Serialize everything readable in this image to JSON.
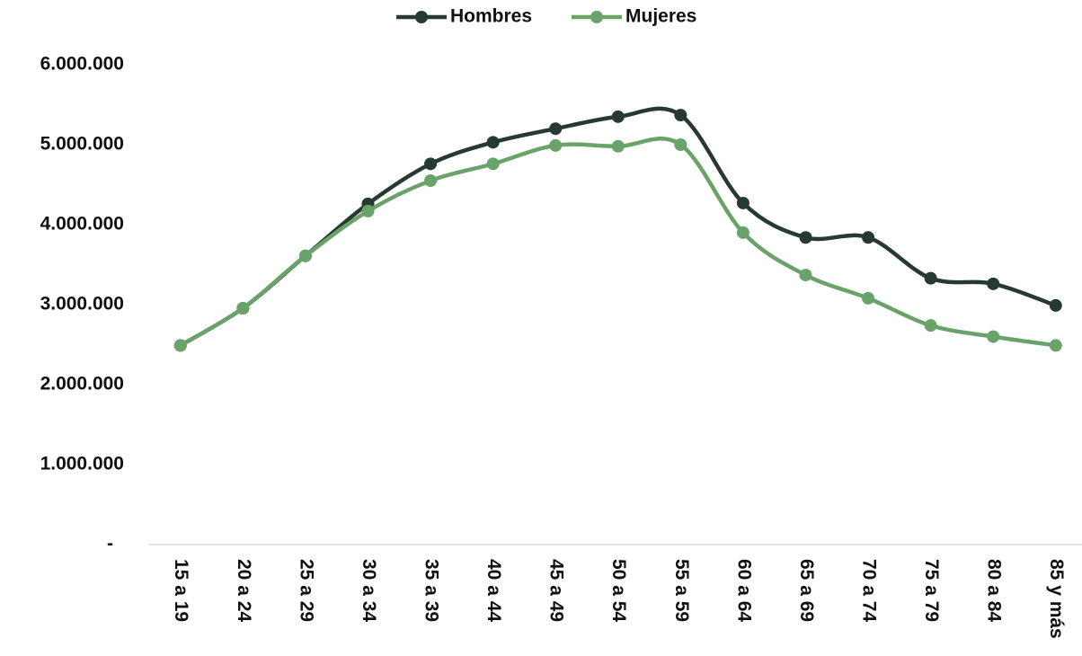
{
  "chart_data": {
    "type": "line",
    "categories": [
      "15 a 19",
      "20 a 24",
      "25 a 29",
      "30 a 34",
      "35 a 39",
      "40 a 44",
      "45 a 49",
      "50 a 54",
      "55 a 59",
      "60 a 64",
      "65 a 69",
      "70 a 74",
      "75 a 79",
      "80 a 84",
      "85 y más"
    ],
    "series": [
      {
        "name": "Hombres",
        "color": "#263a33",
        "values": [
          2490000,
          2955000,
          3610000,
          4260000,
          4760000,
          5030000,
          5200000,
          5350000,
          5370000,
          4270000,
          3840000,
          3840000,
          3330000,
          3260000,
          2990000
        ]
      },
      {
        "name": "Mujeres",
        "color": "#6aa36a",
        "values": [
          2490000,
          2955000,
          3610000,
          4170000,
          4550000,
          4760000,
          4990000,
          4980000,
          5000000,
          3900000,
          3370000,
          3080000,
          2740000,
          2600000,
          2490000
        ]
      }
    ],
    "ylim": [
      0,
      6000000
    ],
    "yticks": [
      {
        "value": 0,
        "label": "-"
      },
      {
        "value": 1000000,
        "label": "1.000.000"
      },
      {
        "value": 2000000,
        "label": "2.000.000"
      },
      {
        "value": 3000000,
        "label": "3.000.000"
      },
      {
        "value": 4000000,
        "label": "4.000.000"
      },
      {
        "value": 5000000,
        "label": "5.000.000"
      },
      {
        "value": 6000000,
        "label": "6.000.000"
      }
    ],
    "grid": false,
    "smooth": true,
    "legend": "top"
  }
}
